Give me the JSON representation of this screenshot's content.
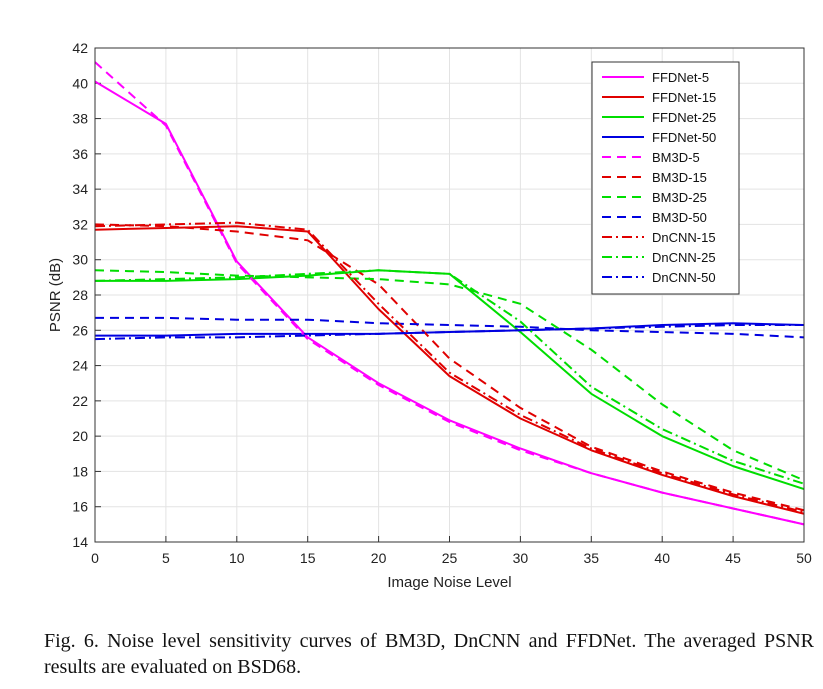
{
  "caption": "Fig. 6.  Noise level sensitivity curves of BM3D, DnCNN and FFDNet. The averaged PSNR results are evaluated on BSD68.",
  "chart_data": {
    "type": "line",
    "title": "",
    "xlabel": "Image Noise Level",
    "ylabel": "PSNR (dB)",
    "xlim": [
      0,
      50
    ],
    "ylim": [
      14,
      42
    ],
    "xticks": [
      0,
      5,
      10,
      15,
      20,
      25,
      30,
      35,
      40,
      45,
      50
    ],
    "yticks": [
      14,
      16,
      18,
      20,
      22,
      24,
      26,
      28,
      30,
      32,
      34,
      36,
      38,
      40,
      42
    ],
    "grid": true,
    "legend_position": "top-right",
    "x": [
      0,
      5,
      10,
      15,
      20,
      25,
      30,
      35,
      40,
      45,
      50
    ],
    "series": [
      {
        "name": "FFDNet-5",
        "color": "#ff00ff",
        "dash": "solid",
        "values": [
          40.1,
          37.7,
          29.9,
          25.6,
          23.0,
          20.9,
          19.3,
          17.9,
          16.8,
          15.9,
          15.0
        ]
      },
      {
        "name": "FFDNet-15",
        "color": "#e00000",
        "dash": "solid",
        "values": [
          31.7,
          31.8,
          31.9,
          31.6,
          27.2,
          23.4,
          21.0,
          19.2,
          17.8,
          16.6,
          15.6
        ]
      },
      {
        "name": "FFDNet-25",
        "color": "#00dd00",
        "dash": "solid",
        "values": [
          28.8,
          28.8,
          28.9,
          29.1,
          29.4,
          29.2,
          25.9,
          22.4,
          20.0,
          18.3,
          17.0
        ]
      },
      {
        "name": "FFDNet-50",
        "color": "#0000e0",
        "dash": "solid",
        "values": [
          25.7,
          25.7,
          25.8,
          25.8,
          25.8,
          25.9,
          26.0,
          26.1,
          26.3,
          26.4,
          26.3
        ]
      },
      {
        "name": "BM3D-5",
        "color": "#ff00ff",
        "dash": "dashed",
        "values": [
          41.2,
          37.6,
          29.8,
          25.5,
          22.9,
          20.8,
          19.2,
          17.9,
          16.8,
          15.9,
          15.0
        ]
      },
      {
        "name": "BM3D-15",
        "color": "#e00000",
        "dash": "dashed",
        "values": [
          32.0,
          31.9,
          31.6,
          31.1,
          28.6,
          24.4,
          21.6,
          19.4,
          18.0,
          16.8,
          15.8
        ]
      },
      {
        "name": "BM3D-25",
        "color": "#00dd00",
        "dash": "dashed",
        "values": [
          29.4,
          29.3,
          29.1,
          29.0,
          28.9,
          28.6,
          27.5,
          24.9,
          21.8,
          19.2,
          17.5
        ]
      },
      {
        "name": "BM3D-50",
        "color": "#0000e0",
        "dash": "dashed",
        "values": [
          26.7,
          26.7,
          26.6,
          26.6,
          26.4,
          26.3,
          26.2,
          26.0,
          25.9,
          25.8,
          25.6
        ]
      },
      {
        "name": "DnCNN-15",
        "color": "#e00000",
        "dash": "dashdot",
        "values": [
          31.9,
          32.0,
          32.1,
          31.7,
          27.5,
          23.6,
          21.2,
          19.3,
          17.9,
          16.7,
          15.7
        ]
      },
      {
        "name": "DnCNN-25",
        "color": "#00dd00",
        "dash": "dashdot",
        "values": [
          28.8,
          28.9,
          29.0,
          29.2,
          29.4,
          29.2,
          26.5,
          22.8,
          20.4,
          18.6,
          17.3
        ]
      },
      {
        "name": "DnCNN-50",
        "color": "#0000e0",
        "dash": "dashdot",
        "values": [
          25.5,
          25.6,
          25.6,
          25.7,
          25.8,
          25.9,
          26.0,
          26.1,
          26.2,
          26.3,
          26.3
        ]
      }
    ]
  }
}
